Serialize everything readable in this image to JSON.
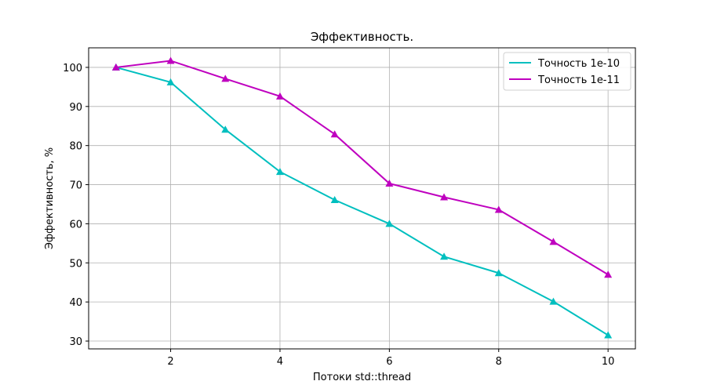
{
  "chart_data": {
    "type": "line",
    "title": "Эффективность.",
    "xlabel": "Потоки std::thread",
    "ylabel": "Эффективность, %",
    "x": [
      1,
      2,
      3,
      4,
      5,
      6,
      7,
      8,
      9,
      10
    ],
    "xlim": [
      0.5,
      10.5
    ],
    "ylim": [
      28,
      105
    ],
    "xticks": [
      2,
      4,
      6,
      8,
      10
    ],
    "yticks": [
      30,
      40,
      50,
      60,
      70,
      80,
      90,
      100
    ],
    "grid": true,
    "legend_position": "top-right",
    "marker": "triangle",
    "series": [
      {
        "name": "Точность 1e-10",
        "color": "#00bfbf",
        "values": [
          100,
          96.2,
          84.1,
          73.3,
          66.1,
          60.0,
          51.6,
          47.4,
          40.1,
          31.5
        ]
      },
      {
        "name": "Точность 1e-11",
        "color": "#bf00bf",
        "values": [
          100,
          101.7,
          97.1,
          92.6,
          82.9,
          70.3,
          66.8,
          63.6,
          55.4,
          47.0
        ]
      }
    ]
  }
}
